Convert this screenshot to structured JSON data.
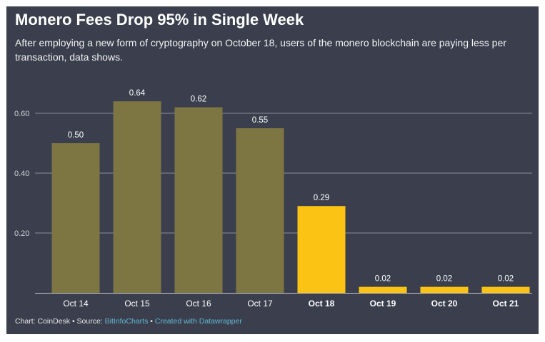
{
  "title": "Monero Fees Drop 95% in Single Week",
  "subtitle": "After employing a new form of cryptography on October 18, users of the monero blockchain are paying less per transaction, data shows.",
  "footer": {
    "credit": "Chart: CoinDesk",
    "sep1": " • Source: ",
    "source": "BitInfoCharts",
    "sep2": " • ",
    "created": "Created with Datawrapper"
  },
  "colors": {
    "background": "#3b3f4d",
    "bar_before": "#7d7643",
    "bar_after": "#fbc414",
    "grid": "#8a8d97",
    "text": "#ffffff",
    "link": "#62b7d3"
  },
  "chart_data": {
    "type": "bar",
    "title": "Monero Fees Drop 95% in Single Week",
    "categories": [
      "Oct 14",
      "Oct 15",
      "Oct 16",
      "Oct 17",
      "Oct 18",
      "Oct 19",
      "Oct 20",
      "Oct 21"
    ],
    "values": [
      0.5,
      0.64,
      0.62,
      0.55,
      0.29,
      0.02,
      0.02,
      0.02
    ],
    "value_labels": [
      "0.50",
      "0.64",
      "0.62",
      "0.55",
      "0.29",
      "0.02",
      "0.02",
      "0.02"
    ],
    "highlighted": [
      false,
      false,
      false,
      false,
      true,
      true,
      true,
      true
    ],
    "y_ticks": [
      0.2,
      0.4,
      0.6
    ],
    "y_tick_labels": [
      "0.20",
      "0.40",
      "0.60"
    ],
    "ylim": [
      0,
      0.6
    ],
    "xlabel": "",
    "ylabel": "",
    "grid": true,
    "legend": "none"
  }
}
